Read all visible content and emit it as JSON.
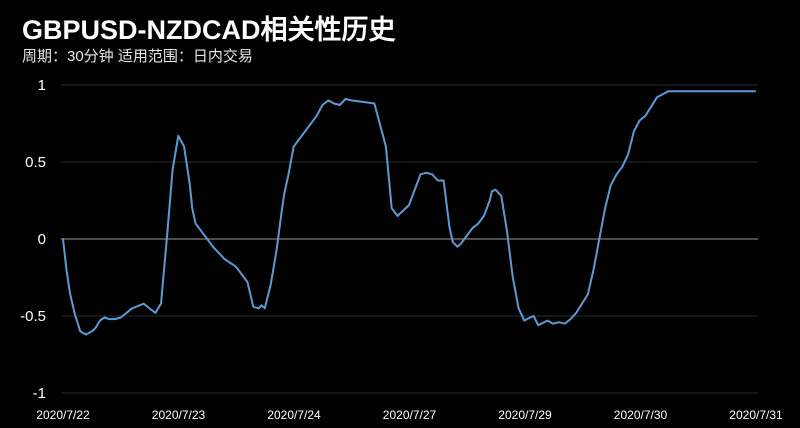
{
  "title": "GBPUSD-NZDCAD相关性历史",
  "subtitle": "周期：30分钟  适用范围：日内交易",
  "colors": {
    "background": "#000000",
    "line": "#5b9bd5",
    "grid": "#2b2b2b",
    "zero_line": "#9a9a9a"
  },
  "chart_data": {
    "type": "line",
    "title": "GBPUSD-NZDCAD相关性历史",
    "xlabel": "",
    "ylabel": "",
    "ylim": [
      -1,
      1
    ],
    "yticks": [
      1,
      0.5,
      0,
      -0.5,
      -1
    ],
    "ytick_labels": [
      "1",
      "0.5",
      "0",
      "-0.5",
      "-1"
    ],
    "xtick_labels": [
      "2020/7/22",
      "2020/7/23",
      "2020/7/24",
      "2020/7/27",
      "2020/7/29",
      "2020/7/30",
      "2020/7/31"
    ],
    "grid": true,
    "series": [
      {
        "x": [
          0,
          0.03,
          0.06,
          0.1,
          0.15,
          0.2,
          0.25,
          0.28,
          0.32,
          0.36,
          0.4,
          0.45,
          0.5,
          0.6,
          0.7,
          0.8,
          0.85,
          0.9,
          0.95,
          1.0,
          1.05,
          1.1,
          1.12,
          1.15,
          1.18,
          1.2,
          1.25,
          1.3,
          1.4,
          1.5,
          1.6,
          1.65,
          1.7,
          1.72,
          1.75,
          1.8,
          1.85,
          1.9,
          1.92,
          1.95,
          2.0,
          2.05,
          2.1,
          2.15,
          2.2,
          2.25,
          2.3,
          2.35,
          2.4,
          2.45,
          2.5,
          2.6,
          2.7,
          2.8,
          2.85,
          2.9,
          3.0,
          3.1,
          3.15,
          3.2,
          3.25,
          3.3,
          3.35,
          3.38,
          3.42,
          3.45,
          3.5,
          3.55,
          3.6,
          3.62,
          3.65,
          3.7,
          3.72,
          3.75,
          3.8,
          3.85,
          3.9,
          3.95,
          4.0,
          4.05,
          4.08,
          4.12,
          4.2,
          4.25,
          4.3,
          4.35,
          4.4,
          4.45,
          4.5,
          4.55,
          4.6,
          4.65,
          4.7,
          4.75,
          4.8,
          4.85,
          4.9,
          4.95,
          5.0,
          5.05,
          5.1,
          5.15,
          5.2,
          5.25,
          5.3,
          5.35,
          5.4,
          5.45,
          5.5,
          5.55,
          5.6,
          5.65,
          5.7,
          5.75,
          5.8,
          5.85,
          5.9,
          5.95,
          6.0
        ],
        "y": [
          0,
          -0.2,
          -0.35,
          -0.48,
          -0.6,
          -0.62,
          -0.6,
          -0.58,
          -0.53,
          -0.51,
          -0.52,
          -0.52,
          -0.51,
          -0.45,
          -0.42,
          -0.48,
          -0.42,
          0.0,
          0.45,
          0.67,
          0.6,
          0.35,
          0.2,
          0.1,
          0.07,
          0.05,
          0.0,
          -0.05,
          -0.13,
          -0.18,
          -0.28,
          -0.44,
          -0.45,
          -0.43,
          -0.45,
          -0.3,
          -0.08,
          0.2,
          0.3,
          0.4,
          0.6,
          0.65,
          0.7,
          0.75,
          0.8,
          0.87,
          0.9,
          0.88,
          0.87,
          0.91,
          0.9,
          0.89,
          0.88,
          0.6,
          0.2,
          0.15,
          0.22,
          0.42,
          0.43,
          0.42,
          0.38,
          0.38,
          0.08,
          -0.02,
          -0.05,
          -0.03,
          0.02,
          0.07,
          0.1,
          0.12,
          0.15,
          0.25,
          0.31,
          0.32,
          0.28,
          0.05,
          -0.25,
          -0.45,
          -0.53,
          -0.51,
          -0.5,
          -0.56,
          -0.53,
          -0.55,
          -0.54,
          -0.55,
          -0.52,
          -0.48,
          -0.42,
          -0.36,
          -0.2,
          0.0,
          0.2,
          0.35,
          0.42,
          0.47,
          0.55,
          0.7,
          0.77,
          0.8,
          0.86,
          0.92,
          0.94,
          0.96,
          0.96,
          0.96,
          0.96,
          0.96,
          0.96,
          0.96,
          0.96,
          0.96,
          0.96,
          0.96,
          0.96,
          0.96,
          0.96,
          0.96,
          0.96
        ]
      }
    ]
  }
}
